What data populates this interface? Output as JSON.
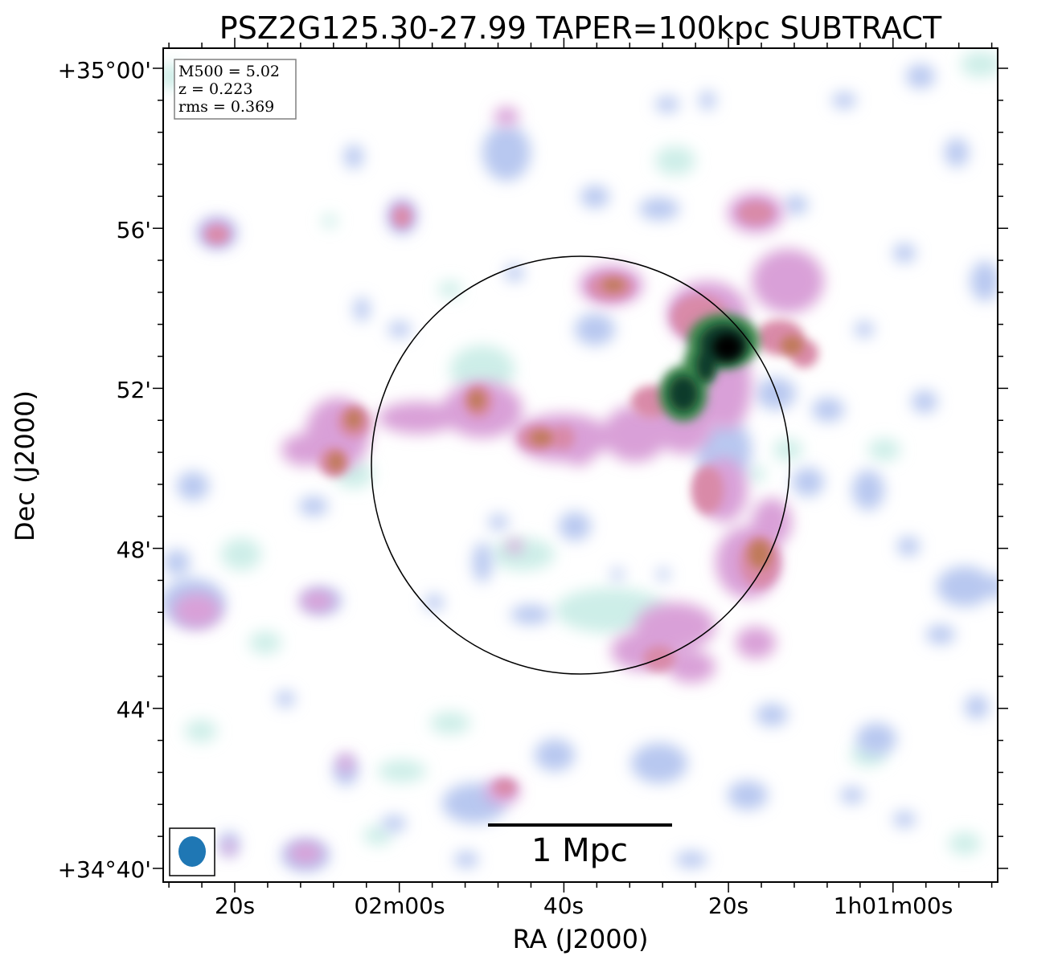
{
  "chart_data": {
    "type": "heatmap",
    "title": "PSZ2G125.30-27.99 TAPER=100kpc SUBTRACT",
    "xlabel": "RA (J2000)",
    "ylabel": "Dec (J2000)",
    "x_ticks": [
      "20s",
      "02m00s",
      "40s",
      "20s",
      "1h01m00s"
    ],
    "y_ticks": [
      "+34°40'",
      "44'",
      "48'",
      "52'",
      "56'",
      "+35°00'"
    ],
    "info_box": [
      "M500 = 5.02",
      "z = 0.223",
      "rms = 0.369"
    ],
    "scale_bar_label": "1 Mpc",
    "colormap": [
      "#ffffff",
      "#cdeee8",
      "#b8c8f0",
      "#d9a0d8",
      "#d98aa8",
      "#c07a5a",
      "#3f8a50",
      "#0a3a2a",
      "#000000"
    ],
    "beam_color": "#1f77b4",
    "circle_color": "#000000"
  }
}
